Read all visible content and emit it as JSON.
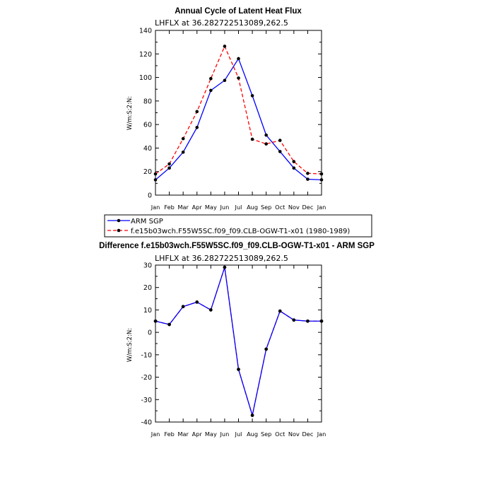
{
  "chart_data": [
    {
      "type": "line",
      "title": "Annual Cycle of Latent Heat Flux",
      "subtitle": "LHFLX at 36.282722513089,262.5",
      "ylabel": "W/m:S:2:N:",
      "categories": [
        "Jan",
        "Feb",
        "Mar",
        "Apr",
        "May",
        "Jun",
        "Jul",
        "Aug",
        "Sep",
        "Oct",
        "Nov",
        "Dec",
        "Jan"
      ],
      "ylim": [
        0,
        140
      ],
      "yticks": [
        0,
        20,
        40,
        60,
        80,
        100,
        120,
        140
      ],
      "series": [
        {
          "name": "ARM SGP",
          "color": "#0000ff",
          "dash": "solid",
          "values": [
            13,
            23,
            36.5,
            57.5,
            89,
            97.5,
            116,
            84.5,
            51,
            37,
            23,
            13.5,
            13
          ]
        },
        {
          "name": "f.e15b03wch.F55W5SC.f09_f09.CLB-OGW-T1-x01 (1980-1989)",
          "color": "#ff0000",
          "dash": "dashed",
          "values": [
            18,
            26.5,
            48,
            71,
            99,
            126.5,
            99.5,
            47.5,
            43.5,
            46.5,
            28.5,
            18.5,
            18
          ]
        }
      ]
    },
    {
      "type": "line",
      "title": "Difference f.e15b03wch.F55W5SC.f09_f09.CLB-OGW-T1-x01 - ARM SGP",
      "subtitle": "LHFLX at 36.282722513089,262.5",
      "ylabel": "W/m:S:2:N:",
      "categories": [
        "Jan",
        "Feb",
        "Mar",
        "Apr",
        "May",
        "Jun",
        "Jul",
        "Aug",
        "Sep",
        "Oct",
        "Nov",
        "Dec",
        "Jan"
      ],
      "ylim": [
        -40,
        30
      ],
      "yticks": [
        -40,
        -30,
        -20,
        -10,
        0,
        10,
        20,
        30
      ],
      "series": [
        {
          "color": "#0000ff",
          "dash": "solid",
          "values": [
            5,
            3.5,
            11.5,
            13.5,
            10,
            29,
            -16.5,
            -37,
            -7.5,
            9.5,
            5.5,
            5,
            5
          ]
        },
        {
          "color": "#ff0000",
          "dash": "dashed",
          "values": [
            5,
            3.5,
            11.5,
            13.5,
            10,
            29,
            -16.5,
            -37,
            -7.5,
            9.5,
            5.5,
            5,
            5
          ]
        }
      ]
    }
  ]
}
